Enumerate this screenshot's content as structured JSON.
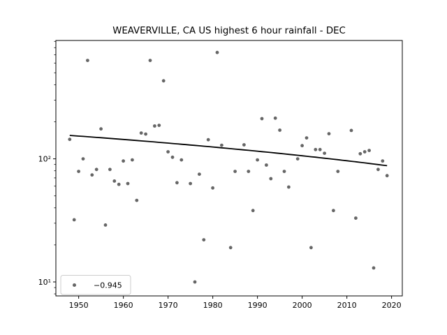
{
  "chart_data": {
    "type": "scatter",
    "title": "WEAVERVILLE, CA US highest 6 hour rainfall - DEC",
    "xlabel": "",
    "ylabel": "",
    "y_scale": "log",
    "grid": false,
    "xlim": [
      1944.9,
      2022.4
    ],
    "ylim": [
      7.7,
      915
    ],
    "x_ticks": [
      "1950",
      "1960",
      "1970",
      "1980",
      "1990",
      "2000",
      "2010",
      "2020"
    ],
    "y_major_ticks": [
      {
        "value": 10,
        "label": "10¹"
      },
      {
        "value": 100,
        "label": "10²"
      }
    ],
    "y_minor_ticks": [
      8,
      9,
      20,
      30,
      40,
      50,
      60,
      70,
      80,
      90,
      200,
      300,
      400,
      500,
      600,
      700,
      800,
      900
    ],
    "marker_color": "#666666",
    "line_color": "#000000",
    "legend": {
      "label": "−0.945",
      "position": "lower left",
      "marker": "dot-icon"
    },
    "trend": {
      "year_start": 1948,
      "year_end": 2019,
      "value_start": 155,
      "value_end": 88
    },
    "points": [
      {
        "year": 1948,
        "value": 144
      },
      {
        "year": 1949,
        "value": 32
      },
      {
        "year": 1950,
        "value": 79
      },
      {
        "year": 1951,
        "value": 100
      },
      {
        "year": 1952,
        "value": 630
      },
      {
        "year": 1953,
        "value": 74
      },
      {
        "year": 1954,
        "value": 82
      },
      {
        "year": 1955,
        "value": 175
      },
      {
        "year": 1956,
        "value": 29
      },
      {
        "year": 1957,
        "value": 82
      },
      {
        "year": 1958,
        "value": 66
      },
      {
        "year": 1959,
        "value": 62
      },
      {
        "year": 1960,
        "value": 96
      },
      {
        "year": 1961,
        "value": 63
      },
      {
        "year": 1962,
        "value": 98
      },
      {
        "year": 1963,
        "value": 46
      },
      {
        "year": 1964,
        "value": 162
      },
      {
        "year": 1965,
        "value": 159
      },
      {
        "year": 1966,
        "value": 630
      },
      {
        "year": 1967,
        "value": 185
      },
      {
        "year": 1968,
        "value": 187
      },
      {
        "year": 1969,
        "value": 430
      },
      {
        "year": 1970,
        "value": 114
      },
      {
        "year": 1971,
        "value": 103
      },
      {
        "year": 1972,
        "value": 64
      },
      {
        "year": 1973,
        "value": 98
      },
      {
        "year": 1975,
        "value": 63
      },
      {
        "year": 1976,
        "value": 10
      },
      {
        "year": 1977,
        "value": 75
      },
      {
        "year": 1978,
        "value": 22
      },
      {
        "year": 1979,
        "value": 143
      },
      {
        "year": 1980,
        "value": 58
      },
      {
        "year": 1981,
        "value": 731
      },
      {
        "year": 1982,
        "value": 129
      },
      {
        "year": 1984,
        "value": 19
      },
      {
        "year": 1985,
        "value": 79
      },
      {
        "year": 1987,
        "value": 130
      },
      {
        "year": 1988,
        "value": 79
      },
      {
        "year": 1989,
        "value": 38
      },
      {
        "year": 1990,
        "value": 98
      },
      {
        "year": 1991,
        "value": 212
      },
      {
        "year": 1992,
        "value": 89
      },
      {
        "year": 1993,
        "value": 69
      },
      {
        "year": 1994,
        "value": 214
      },
      {
        "year": 1995,
        "value": 171
      },
      {
        "year": 1996,
        "value": 79
      },
      {
        "year": 1997,
        "value": 59
      },
      {
        "year": 1999,
        "value": 100
      },
      {
        "year": 2000,
        "value": 128
      },
      {
        "year": 2001,
        "value": 148
      },
      {
        "year": 2002,
        "value": 19
      },
      {
        "year": 2003,
        "value": 119
      },
      {
        "year": 2004,
        "value": 119
      },
      {
        "year": 2005,
        "value": 111
      },
      {
        "year": 2006,
        "value": 160
      },
      {
        "year": 2007,
        "value": 38
      },
      {
        "year": 2008,
        "value": 79
      },
      {
        "year": 2011,
        "value": 170
      },
      {
        "year": 2012,
        "value": 33
      },
      {
        "year": 2013,
        "value": 110
      },
      {
        "year": 2014,
        "value": 114
      },
      {
        "year": 2015,
        "value": 117
      },
      {
        "year": 2016,
        "value": 13
      },
      {
        "year": 2017,
        "value": 82
      },
      {
        "year": 2018,
        "value": 96
      },
      {
        "year": 2019,
        "value": 73
      }
    ]
  }
}
